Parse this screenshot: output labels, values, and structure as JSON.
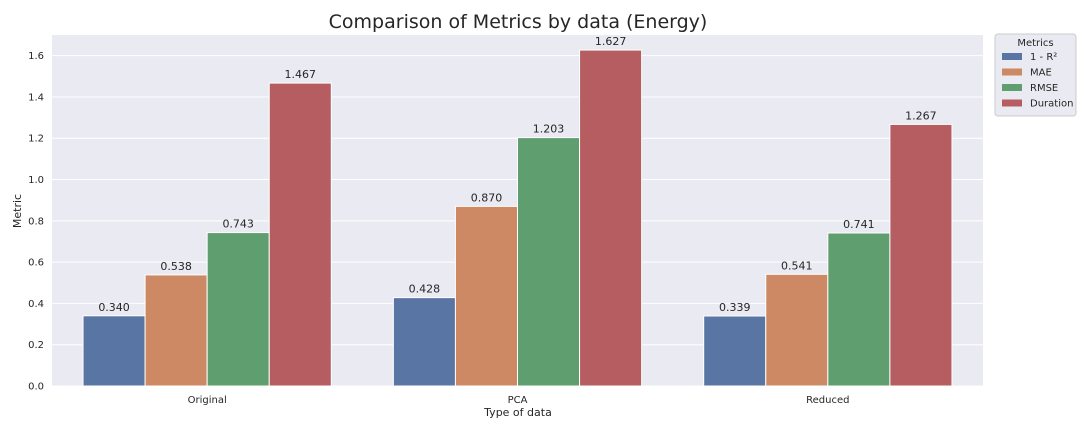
{
  "chart_data": {
    "type": "bar",
    "title": "Comparison of Metrics by data (Energy)",
    "xlabel": "Type of data",
    "ylabel": "Metric",
    "categories": [
      "Original",
      "PCA",
      "Reduced"
    ],
    "ylim": [
      0,
      1.7
    ],
    "yticks": [
      "0.0",
      "0.2",
      "0.4",
      "0.6",
      "0.8",
      "1.0",
      "1.2",
      "1.4",
      "1.6"
    ],
    "grid": true,
    "legend": {
      "title": "Metrics",
      "placement": "outside top-right"
    },
    "series": [
      {
        "name": "1 - R²",
        "color": "#5975a4",
        "values": [
          0.34,
          0.428,
          0.339
        ],
        "labels": [
          "0.340",
          "0.428",
          "0.339"
        ]
      },
      {
        "name": "MAE",
        "color": "#cc8963",
        "values": [
          0.538,
          0.87,
          0.541
        ],
        "labels": [
          "0.538",
          "0.870",
          "0.541"
        ]
      },
      {
        "name": "RMSE",
        "color": "#5f9e6e",
        "values": [
          0.743,
          1.203,
          0.741
        ],
        "labels": [
          "0.743",
          "1.203",
          "0.741"
        ]
      },
      {
        "name": "Duration",
        "color": "#b55d60",
        "values": [
          1.467,
          1.627,
          1.267
        ],
        "labels": [
          "1.467",
          "1.627",
          "1.267"
        ]
      }
    ]
  }
}
